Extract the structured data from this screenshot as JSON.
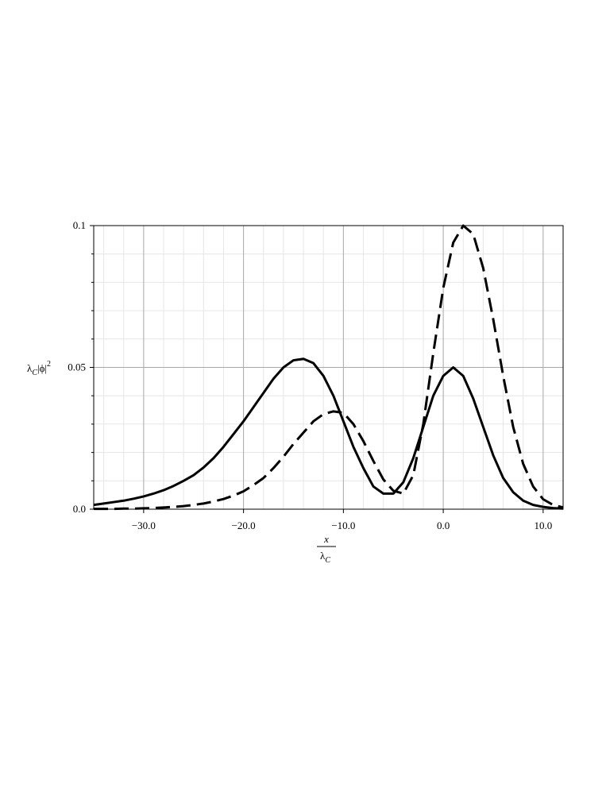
{
  "chart_data": {
    "type": "line",
    "ylabel": [
      "λ",
      "C",
      "|ϕ|",
      "2"
    ],
    "xlabel": [
      "x",
      "λ",
      "C"
    ],
    "x": [
      -35,
      -34,
      -33,
      -32,
      -31,
      -30,
      -29,
      -28,
      -27,
      -26,
      -25,
      -24,
      -23,
      -22,
      -21,
      -20,
      -19,
      -18,
      -17,
      -16,
      -15,
      -14,
      -13,
      -12,
      -11,
      -10,
      -9,
      -8,
      -7,
      -6,
      -5,
      -4,
      -3,
      -2,
      -1,
      0,
      1,
      2,
      3,
      4,
      5,
      6,
      7,
      8,
      9,
      10,
      11,
      12
    ],
    "series": [
      {
        "color": "#000000",
        "dash": "solid",
        "values": [
          0.0015,
          0.002,
          0.0025,
          0.003,
          0.0037,
          0.0045,
          0.0055,
          0.0067,
          0.0082,
          0.01,
          0.012,
          0.0147,
          0.018,
          0.022,
          0.0265,
          0.031,
          0.036,
          0.041,
          0.046,
          0.05,
          0.0525,
          0.053,
          0.0515,
          0.047,
          0.04,
          0.031,
          0.022,
          0.0145,
          0.008,
          0.0055,
          0.0055,
          0.0095,
          0.018,
          0.029,
          0.04,
          0.047,
          0.05,
          0.047,
          0.039,
          0.029,
          0.019,
          0.011,
          0.006,
          0.003,
          0.0015,
          0.0008,
          0.0004,
          0.0002
        ]
      },
      {
        "color": "#000000",
        "dash": "dashed",
        "values": [
          0.0001,
          0.0001,
          0.0001,
          0.0002,
          0.0002,
          0.0003,
          0.0004,
          0.0006,
          0.0008,
          0.0011,
          0.0015,
          0.002,
          0.0027,
          0.0036,
          0.0048,
          0.0063,
          0.0085,
          0.011,
          0.0145,
          0.0185,
          0.023,
          0.027,
          0.031,
          0.0335,
          0.0345,
          0.034,
          0.03,
          0.024,
          0.017,
          0.0105,
          0.0065,
          0.0055,
          0.012,
          0.03,
          0.055,
          0.078,
          0.094,
          0.1,
          0.097,
          0.085,
          0.067,
          0.047,
          0.029,
          0.016,
          0.008,
          0.0035,
          0.0015,
          0.0006
        ]
      }
    ],
    "xlim": [
      -35,
      12
    ],
    "ylim": [
      0,
      0.1
    ],
    "xticks": [
      {
        "value": -30,
        "label": "−30.0"
      },
      {
        "value": -20,
        "label": "−20.0"
      },
      {
        "value": -10,
        "label": "−10.0"
      },
      {
        "value": 0,
        "label": "0.0"
      },
      {
        "value": 10,
        "label": "10.0"
      }
    ],
    "yticks": [
      {
        "value": 0,
        "label": "0.0"
      },
      0.05,
      0.1
    ],
    "xminor": [
      -34,
      -32,
      -28,
      -26,
      -24,
      -22,
      -18,
      -16,
      -14,
      -12,
      -8,
      -6,
      -4,
      -2,
      2,
      4,
      6,
      8,
      12
    ],
    "yminor": [
      0.01,
      0.02,
      0.03,
      0.04,
      0.06,
      0.07,
      0.08,
      0.09
    ],
    "grid": true
  }
}
